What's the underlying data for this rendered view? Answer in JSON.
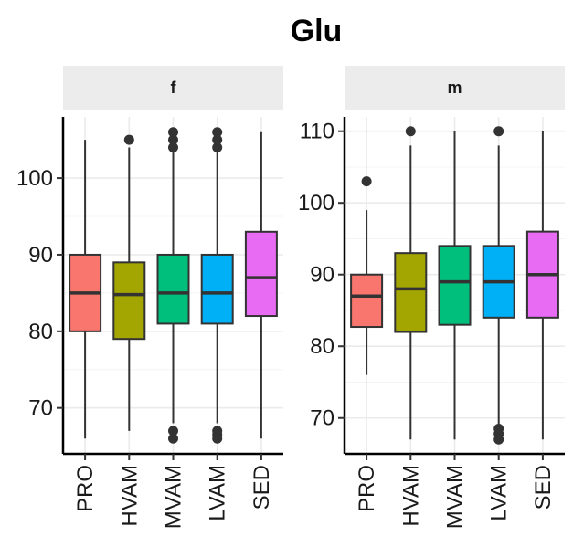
{
  "chart_data": {
    "type": "box",
    "title": "Glu",
    "xlabel": "",
    "ylabel": "",
    "categories": [
      "PRO",
      "HVAM",
      "MVAM",
      "LVAM",
      "SED"
    ],
    "colors": [
      "#F8766D",
      "#A3A500",
      "#00BF7D",
      "#00B0F6",
      "#E76BF3"
    ],
    "grid": true,
    "legend": "none",
    "panels": [
      {
        "strip": "f",
        "ylim": [
          64,
          108
        ],
        "yticks": [
          70,
          80,
          90,
          100
        ],
        "boxes": [
          {
            "category": "PRO",
            "whisker_low": 66,
            "q1": 80,
            "median": 85,
            "q3": 90,
            "whisker_high": 105,
            "outliers": []
          },
          {
            "category": "HVAM",
            "whisker_low": 67,
            "q1": 79,
            "median": 84.8,
            "q3": 89,
            "whisker_high": 104,
            "outliers": [
              105
            ]
          },
          {
            "category": "MVAM",
            "whisker_low": 68,
            "q1": 81,
            "median": 85,
            "q3": 90,
            "whisker_high": 103.5,
            "outliers": [
              104,
              105,
              106,
              67,
              66
            ]
          },
          {
            "category": "LVAM",
            "whisker_low": 68,
            "q1": 81,
            "median": 85,
            "q3": 90,
            "whisker_high": 103.5,
            "outliers": [
              104,
              105,
              106,
              67,
              66.5,
              66
            ]
          },
          {
            "category": "SED",
            "whisker_low": 66,
            "q1": 82,
            "median": 87,
            "q3": 93,
            "whisker_high": 106,
            "outliers": []
          }
        ]
      },
      {
        "strip": "m",
        "ylim": [
          65,
          112
        ],
        "yticks": [
          70,
          80,
          90,
          100,
          110
        ],
        "boxes": [
          {
            "category": "PRO",
            "whisker_low": 76,
            "q1": 82.7,
            "median": 87,
            "q3": 90,
            "whisker_high": 99,
            "outliers": [
              103
            ]
          },
          {
            "category": "HVAM",
            "whisker_low": 67,
            "q1": 82,
            "median": 88,
            "q3": 93,
            "whisker_high": 108,
            "outliers": [
              110
            ]
          },
          {
            "category": "MVAM",
            "whisker_low": 67,
            "q1": 83,
            "median": 89,
            "q3": 94,
            "whisker_high": 110,
            "outliers": []
          },
          {
            "category": "LVAM",
            "whisker_low": 69,
            "q1": 84,
            "median": 89,
            "q3": 94,
            "whisker_high": 108,
            "outliers": [
              110,
              68.5,
              67.8,
              67
            ]
          },
          {
            "category": "SED",
            "whisker_low": 67,
            "q1": 84,
            "median": 90,
            "q3": 96,
            "whisker_high": 110,
            "outliers": []
          }
        ]
      }
    ]
  }
}
